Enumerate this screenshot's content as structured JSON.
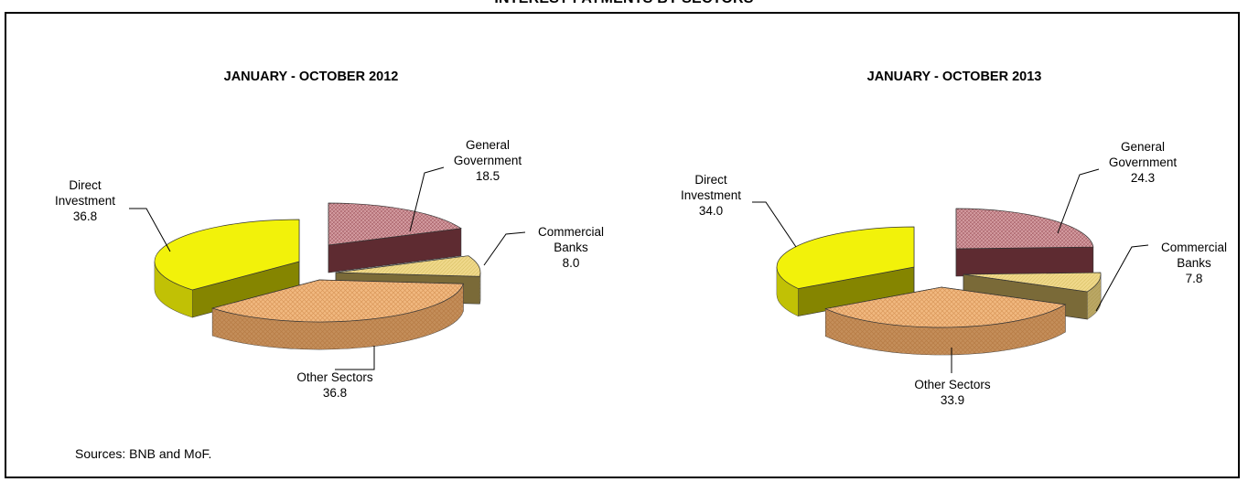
{
  "main_title": "INTEREST PAYMENTS BY SECTORS",
  "source_note": "Sources: BNB and MoF.",
  "colors": {
    "general_government": "#c98a8f",
    "commercial_banks": "#efd88a",
    "other_sectors": "#f1b980",
    "direct_investment": "#f2f20a"
  },
  "chart_data": [
    {
      "type": "pie",
      "style": "3d-exploded",
      "title": "JANUARY - OCTOBER 2012",
      "slices": [
        {
          "name": "General Government",
          "label_lines": [
            "General",
            "Government"
          ],
          "value": 18.5
        },
        {
          "name": "Commercial Banks",
          "label_lines": [
            "Commercial",
            "Banks"
          ],
          "value": 8.0
        },
        {
          "name": "Other Sectors",
          "label_lines": [
            "Other Sectors"
          ],
          "value": 36.8
        },
        {
          "name": "Direct Investment",
          "label_lines": [
            "Direct",
            "Investment"
          ],
          "value": 36.8
        }
      ],
      "value_labels": [
        "18.5",
        "8.0",
        "36.8",
        "36.8"
      ]
    },
    {
      "type": "pie",
      "style": "3d-exploded",
      "title": "JANUARY - OCTOBER 2013",
      "slices": [
        {
          "name": "General Government",
          "label_lines": [
            "General",
            "Government"
          ],
          "value": 24.3
        },
        {
          "name": "Commercial Banks",
          "label_lines": [
            "Commercial",
            "Banks"
          ],
          "value": 7.8
        },
        {
          "name": "Other Sectors",
          "label_lines": [
            "Other Sectors"
          ],
          "value": 33.9
        },
        {
          "name": "Direct Investment",
          "label_lines": [
            "Direct",
            "Investment"
          ],
          "value": 34.0
        }
      ],
      "value_labels": [
        "24.3",
        "7.8",
        "33.9",
        "34.0"
      ]
    }
  ]
}
